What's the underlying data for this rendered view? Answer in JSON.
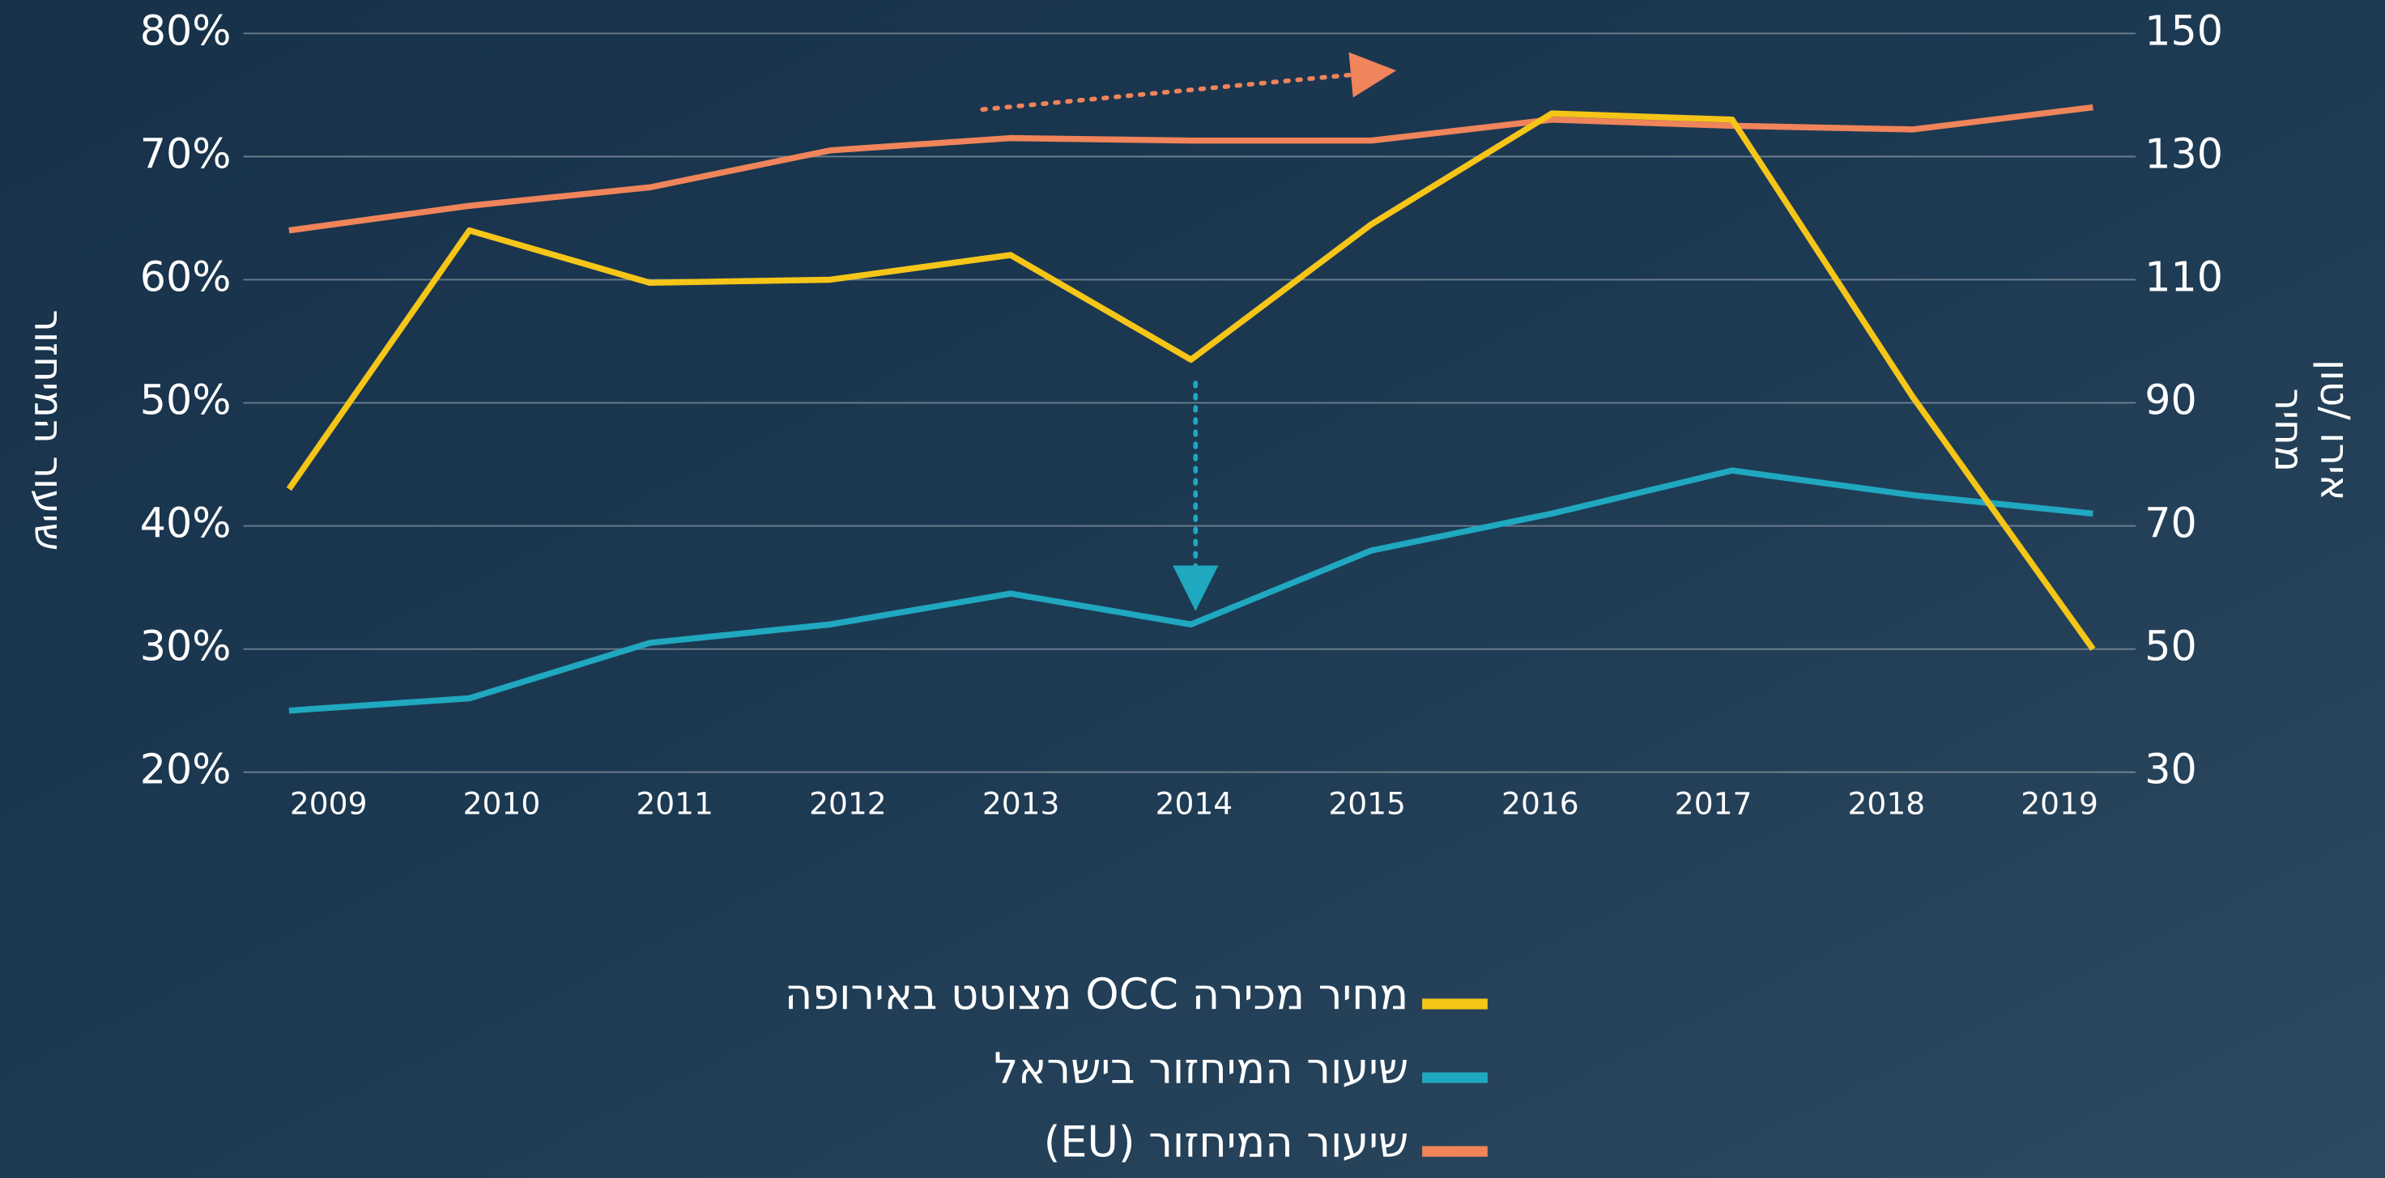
{
  "chart_data": {
    "type": "line",
    "ylabel": "שיעור המיחזור",
    "y2label": [
      "מחיר",
      "אירו /טון"
    ],
    "categories": [
      "2009",
      "2010",
      "2011",
      "2012",
      "2013",
      "2014",
      "2015",
      "2016",
      "2017",
      "2018",
      "2019"
    ],
    "series": [
      {
        "name": "מחיר מכירה  OCC מצוטט באירופה",
        "color": "#f5c518",
        "axis": "y2",
        "values": [
          76,
          118,
          109.5,
          110,
          114,
          97,
          119,
          137,
          136,
          91,
          50
        ]
      },
      {
        "name": "שיעור המיחזור בישראל",
        "color": "#1fa8c0",
        "values": [
          25,
          26,
          30.5,
          32,
          34.5,
          32,
          38,
          41,
          44.5,
          42.5,
          41
        ]
      },
      {
        "name": "שיעור המיחזור (EU)",
        "color": "#f0845a",
        "values": [
          64,
          66,
          67.5,
          70.5,
          71.5,
          71.3,
          71.3,
          73,
          72.5,
          72.2,
          74
        ]
      }
    ],
    "ylim": [
      20,
      80
    ],
    "yticks": [
      {
        "value": 20,
        "label": "20%"
      },
      {
        "value": 30,
        "label": "30%"
      },
      {
        "value": 40,
        "label": "40%"
      },
      {
        "value": 50,
        "label": "50%"
      },
      {
        "value": 60,
        "label": "60%"
      },
      {
        "value": 70,
        "label": "70%"
      },
      {
        "value": 80,
        "label": "80%"
      }
    ],
    "y2lim": [
      30,
      150
    ],
    "y2ticks": [
      30,
      50,
      70,
      90,
      110,
      130,
      150
    ],
    "grid": true
  }
}
